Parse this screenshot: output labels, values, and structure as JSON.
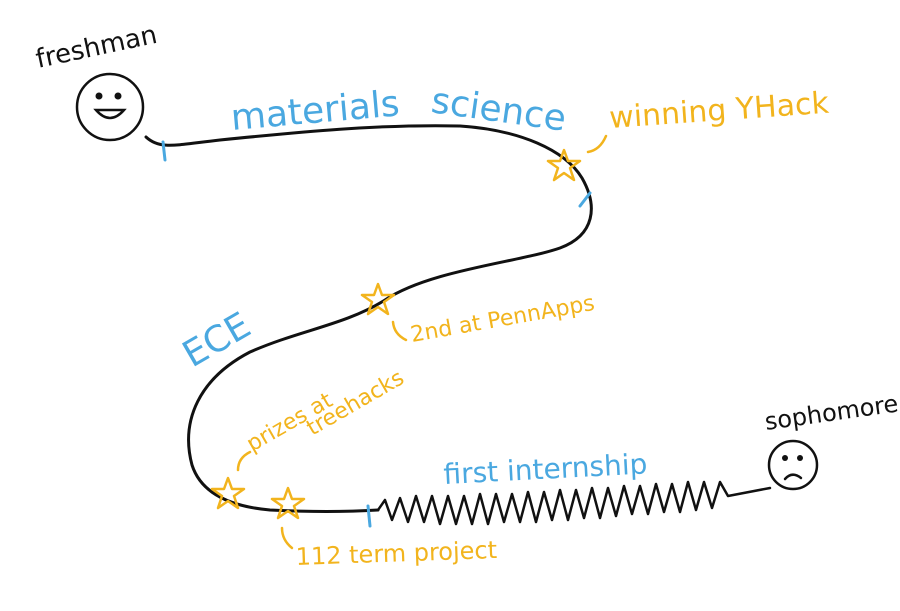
{
  "people": {
    "start": "freshman",
    "end": "sophomore"
  },
  "phases": {
    "materials": "materials",
    "science": "science",
    "ece": "ECE",
    "internship": "first internship"
  },
  "milestones": {
    "yhack": "winning YHack",
    "pennapps": "2nd at PennApps",
    "treehacks_line1": "prizes at",
    "treehacks_line2": "treehacks",
    "term_project": "112 term project"
  },
  "colors": {
    "path": "#111111",
    "phase_text": "#4aa8e0",
    "milestone": "#f2b41d"
  }
}
